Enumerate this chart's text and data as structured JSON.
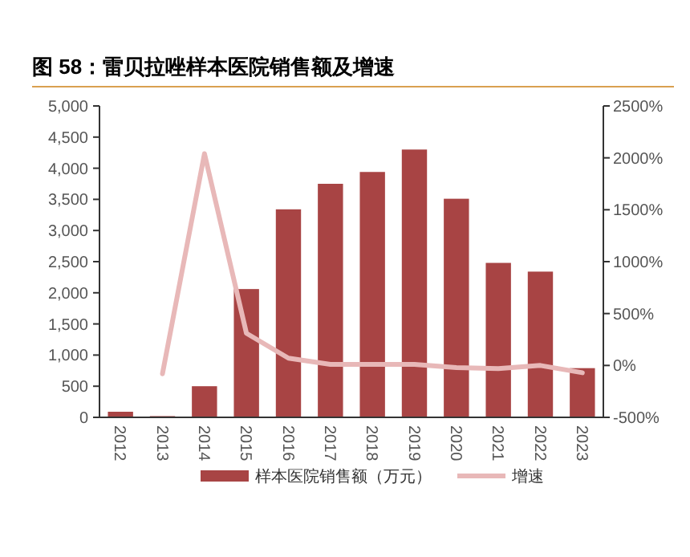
{
  "chart_data": {
    "type": "bar",
    "title": "图 58：雷贝拉唑样本医院销售额及增速",
    "categories": [
      "2012",
      "2013",
      "2014",
      "2015",
      "2016",
      "2017",
      "2018",
      "2019",
      "2020",
      "2021",
      "2022",
      "2023"
    ],
    "series": [
      {
        "name": "样本医院销售额（万元）",
        "color": "#a84444",
        "values": [
          90,
          20,
          500,
          2060,
          3340,
          3750,
          3940,
          4300,
          3510,
          2480,
          2340,
          790
        ]
      },
      {
        "name": "增速",
        "type": "line",
        "axis": "y2",
        "color": "#e8b8b8",
        "values": [
          null,
          -80,
          2040,
          310,
          70,
          10,
          10,
          10,
          -20,
          -30,
          0,
          -70
        ]
      }
    ],
    "ylim": [
      0,
      5000
    ],
    "yticks": [
      0,
      500,
      {
        "value": 1000,
        "label": "1,000"
      },
      {
        "value": 1500,
        "label": "1,500"
      },
      {
        "value": 2000,
        "label": "2,000"
      },
      {
        "value": 2500,
        "label": "2,500"
      },
      {
        "value": 3000,
        "label": "3,000"
      },
      {
        "value": 3500,
        "label": "3,500"
      },
      {
        "value": 4000,
        "label": "4,000"
      },
      {
        "value": 4500,
        "label": "4,500"
      },
      {
        "value": 5000,
        "label": "5,000"
      }
    ],
    "y2lim": [
      -500,
      2500
    ],
    "y2ticks": [
      {
        "value": -500,
        "label": "-500%"
      },
      {
        "value": 0,
        "label": "0%"
      },
      {
        "value": 500,
        "label": "500%"
      },
      {
        "value": 1000,
        "label": "1000%"
      },
      {
        "value": 1500,
        "label": "1500%"
      },
      {
        "value": 2000,
        "label": "2000%"
      },
      {
        "value": 2500,
        "label": "2500%"
      }
    ],
    "grid": false,
    "legend": "bottom"
  }
}
